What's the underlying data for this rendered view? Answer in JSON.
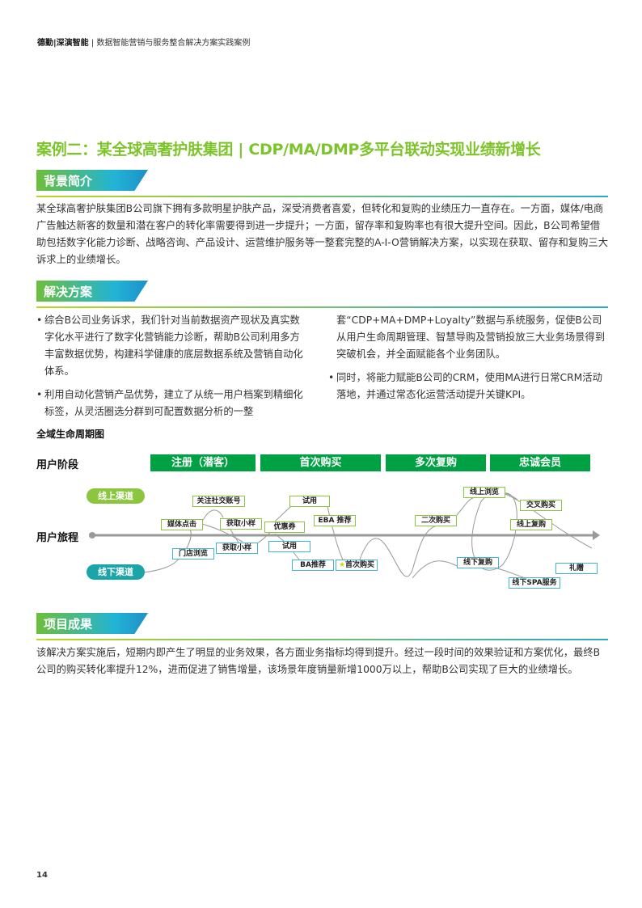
{
  "header": {
    "brand": "德勤|深演智能",
    "subtitle": "数据智能营销与服务整合解决方案实践案例"
  },
  "title": "案例二：某全球高奢护肤集团 | CDP/MA/DMP多平台联动实现业绩新增长",
  "sections": {
    "background": {
      "heading": "背景简介",
      "text": "某全球高奢护肤集团B公司旗下拥有多款明星护肤产品，深受消费者喜爱，但转化和复购的业绩压力一直存在。一方面，媒体/电商广告触达新客的数量和潜在客户的转化率需要得到进一步提升；一方面，留存率和复购率也有很大提升空间。因此，B公司希望借助包括数字化能力诊断、战略咨询、产品设计、运营维护服务等一整套完整的A-I-O营销解决方案，以实现在获取、留存和复购三大诉求上的业绩增长。"
    },
    "solution": {
      "heading": "解决方案",
      "bullets": [
        "综合B公司业务诉求，我们针对当前数据资产现状及真实数字化水平进行了数字化营销能力诊断，帮助B公司利用多方丰富数据优势，构建科学健康的底层数据系统及营销自动化体系。",
        "利用自动化营销产品优势，建立了从统一用户档案到精细化标签，从灵活圈选分群到可配置数据分析的一整",
        "套“CDP+MA+DMP+Loyalty”数据与系统服务，促使B公司从用户生命周期管理、智慧导购及营销投放三大业务场景得到突破机会，并全面赋能各个业务团队。",
        "同时，将能力赋能B公司的CRM，使用MA进行日常CRM活动落地，并通过常态化运营活动提升关键KPI。"
      ]
    },
    "results": {
      "heading": "项目成果",
      "text": "该解决方案实施后，短期内即产生了明显的业务效果，各方面业务指标均得到提升。经过一段时间的效果验证和方案优化，最终B公司的购买转化率提升12%，进而促进了销售增量，该场景年度销量新增1000万以上，帮助B公司实现了巨大的业绩增长。"
    }
  },
  "diagram": {
    "title": "全域生命周期图",
    "stage_row_label": "用户阶段",
    "journey_row_label": "用户旅程",
    "stages": [
      "注册（潜客）",
      "首次购买",
      "多次复购",
      "忠诚会员"
    ],
    "online_channel": "线上渠道",
    "offline_channel": "线下渠道",
    "online_nodes": [
      "关注社交账号",
      "媒体点击",
      "获取小样",
      "优惠券",
      "试用",
      "EBA 推荐",
      "二次购买",
      "线上浏览",
      "交叉购买",
      "线上复购"
    ],
    "offline_nodes": [
      "门店浏览",
      "获取小样",
      "试用",
      "BA推荐",
      "首次购买",
      "线下复购",
      "线下SPA服务",
      "礼赠"
    ],
    "colors": {
      "stage": "#00a142",
      "online": "#8cc63f",
      "offline": "#1ba5a8"
    }
  },
  "page_number": "14"
}
